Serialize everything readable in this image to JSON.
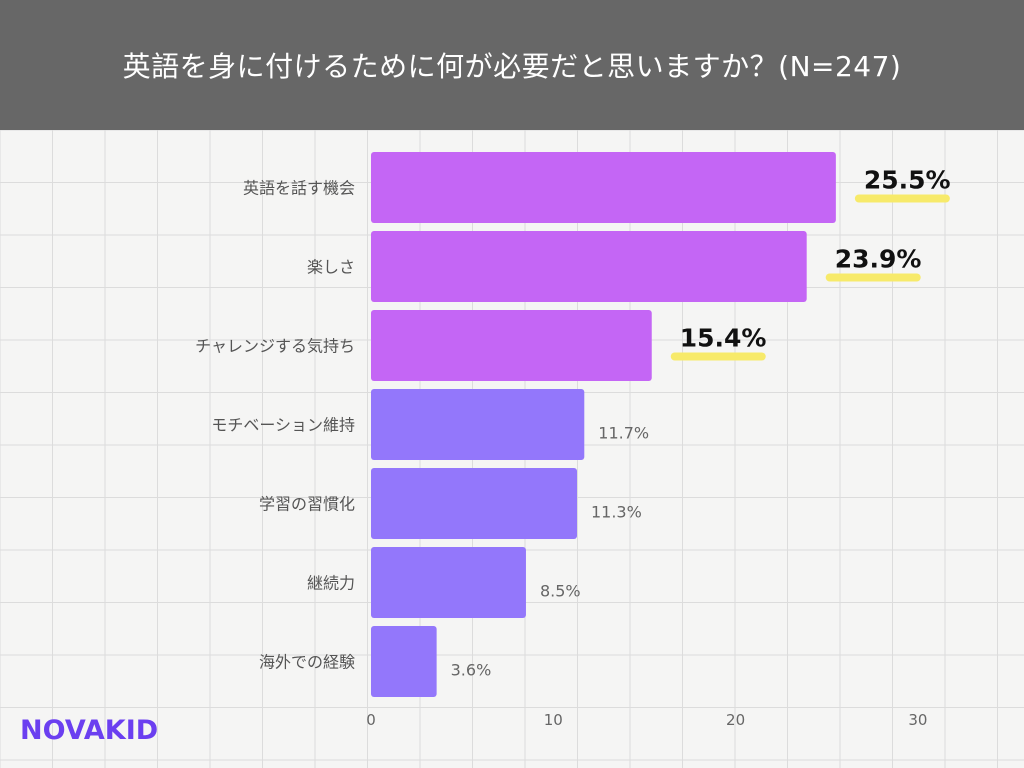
{
  "header": {
    "title": "英語を身に付けるために何が必要だと思いますか？(N=247)"
  },
  "logo": {
    "text": "NOVAKID"
  },
  "colors": {
    "highlight_bar": "#c466f5",
    "normal_bar": "#9377fb",
    "marker": "#f7ea6a",
    "header_bg": "#676767"
  },
  "chart_data": {
    "type": "bar",
    "orientation": "horizontal",
    "title": "英語を身に付けるために何が必要だと思いますか？(N=247)",
    "categories": [
      "英語を話す機会",
      "楽しさ",
      "チャレンジする気持ち",
      "モチベーション維持",
      "学習の習慣化",
      "継続力",
      "海外での経験"
    ],
    "values": [
      25.5,
      23.9,
      15.4,
      11.7,
      11.3,
      8.5,
      3.6
    ],
    "value_labels": [
      "25.5%",
      "23.9%",
      "15.4%",
      "11.7%",
      "11.3%",
      "8.5%",
      "3.6%"
    ],
    "highlighted": [
      true,
      true,
      true,
      false,
      false,
      false,
      false
    ],
    "xlim": [
      0,
      35
    ],
    "xticks": [
      0,
      10,
      20,
      30
    ],
    "grid": true
  }
}
